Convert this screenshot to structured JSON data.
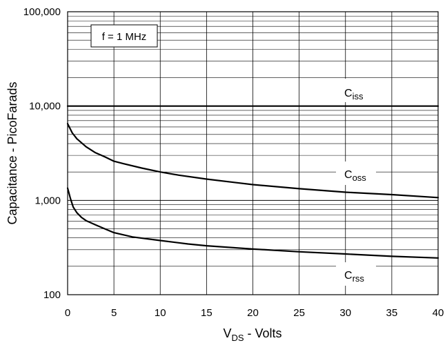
{
  "chart_data": {
    "type": "line",
    "title": "",
    "xlabel": {
      "main": "V",
      "sub": "DS",
      "rest": " - Volts"
    },
    "ylabel": "Capacitance - PicoFarads",
    "xlim": [
      0,
      40
    ],
    "ylim": [
      100,
      100000
    ],
    "yscale": "log",
    "grid": true,
    "x_ticks": [
      0,
      5,
      10,
      15,
      20,
      25,
      30,
      35,
      40
    ],
    "x_tick_labels": [
      "0",
      "5",
      "10",
      "15",
      "20",
      "25",
      "30",
      "35",
      "40"
    ],
    "y_ticks": [
      100,
      1000,
      10000,
      100000
    ],
    "y_tick_labels": [
      "100",
      "1,000",
      "10,000",
      "100,000"
    ],
    "annotation": "f = 1 MHz",
    "series": [
      {
        "name": "Ciss",
        "label_main": "C",
        "label_sub": "iss",
        "x": [
          0,
          40
        ],
        "y": [
          10000,
          10000
        ]
      },
      {
        "name": "Coss",
        "label_main": "C",
        "label_sub": "oss",
        "x": [
          0,
          0.5,
          1,
          2,
          3,
          4,
          5,
          6,
          8,
          10,
          12,
          15,
          18,
          20,
          25,
          30,
          35,
          40
        ],
        "y": [
          6500,
          5200,
          4500,
          3700,
          3200,
          2900,
          2600,
          2450,
          2200,
          2000,
          1850,
          1680,
          1550,
          1470,
          1330,
          1220,
          1150,
          1070
        ]
      },
      {
        "name": "Crss",
        "label_main": "C",
        "label_sub": "rss",
        "x": [
          0,
          0.3,
          0.6,
          1,
          1.5,
          2,
          3,
          4,
          5,
          7,
          10,
          13,
          15,
          20,
          25,
          30,
          35,
          40
        ],
        "y": [
          1350,
          1050,
          850,
          740,
          660,
          610,
          550,
          500,
          455,
          410,
          375,
          345,
          330,
          305,
          285,
          270,
          255,
          245
        ]
      }
    ]
  }
}
